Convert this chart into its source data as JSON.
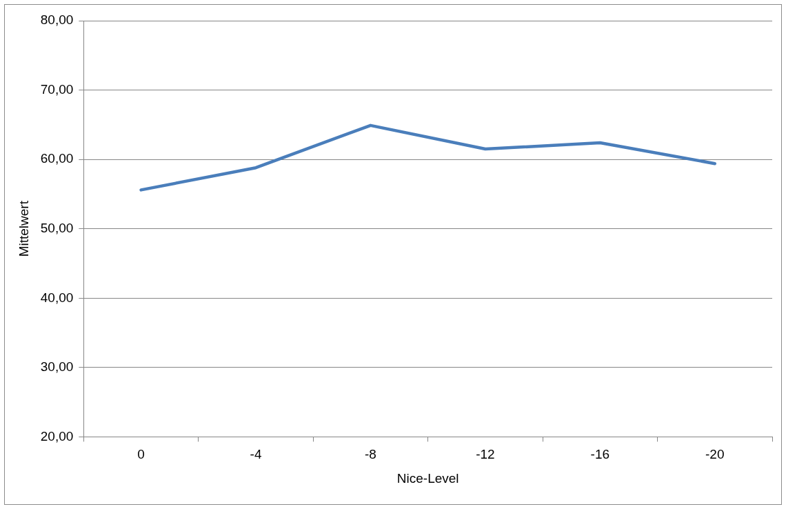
{
  "chart_data": {
    "type": "line",
    "xlabel": "Nice-Level",
    "ylabel": "Mittelwert",
    "categories": [
      "0",
      "-4",
      "-8",
      "-12",
      "-16",
      "-20"
    ],
    "series": [
      {
        "color": "#4a7ebb",
        "values": [
          55.6,
          58.8,
          64.9,
          61.5,
          62.4,
          59.4
        ]
      }
    ],
    "ylim": [
      20,
      80
    ],
    "yticks": [
      {
        "value": 20,
        "label": "20,00"
      },
      {
        "value": 30,
        "label": "30,00"
      },
      {
        "value": 40,
        "label": "40,00"
      },
      {
        "value": 50,
        "label": "50,00"
      },
      {
        "value": 60,
        "label": "60,00"
      },
      {
        "value": 70,
        "label": "70,00"
      },
      {
        "value": 80,
        "label": "80,00"
      }
    ],
    "grid": "y",
    "legend": false,
    "marker": "none",
    "line_style": "solid"
  }
}
